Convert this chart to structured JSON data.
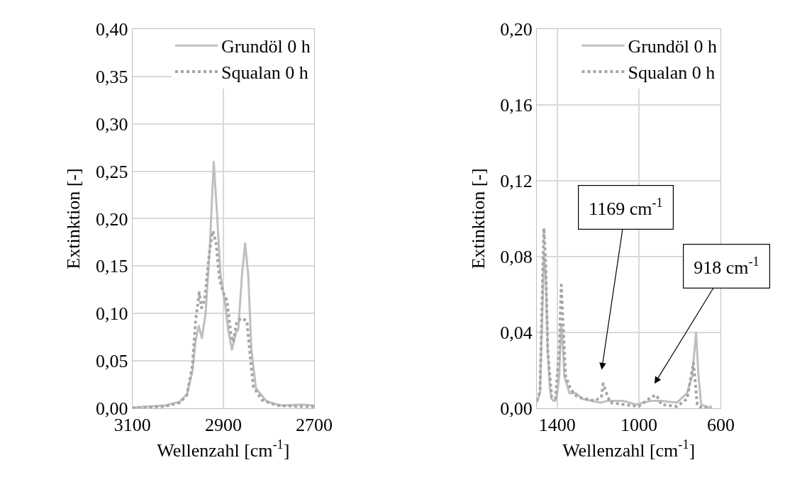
{
  "chart_data": [
    {
      "type": "line",
      "xlabel": "Wellenzahl [cm$^{-1}$]",
      "ylabel": "Extinktion [-]",
      "xlim": [
        3100,
        2700
      ],
      "xticks": [
        3100,
        2900,
        2700
      ],
      "ylim": [
        0,
        0.4
      ],
      "yticks": [
        {
          "value": 0,
          "label": "0,00"
        },
        {
          "value": 0.05,
          "label": "0,05"
        },
        {
          "value": 0.1,
          "label": "0,10"
        },
        {
          "value": 0.15,
          "label": "0,15"
        },
        {
          "value": 0.2,
          "label": "0,20"
        },
        {
          "value": 0.25,
          "label": "0,25"
        },
        {
          "value": 0.3,
          "label": "0,30"
        },
        {
          "value": 0.35,
          "label": "0,35"
        },
        {
          "value": 0.4,
          "label": "0,40"
        }
      ],
      "grid": true,
      "legend": "top right",
      "marker": "none",
      "series": [
        {
          "name": "Grundöl 0 h",
          "color": "#bfbfbf",
          "line_style": "solid",
          "x": [
            3100,
            3029,
            2996,
            2980,
            2968,
            2961,
            2954,
            2947,
            2939,
            2930,
            2921,
            2914,
            2906,
            2897,
            2889,
            2881,
            2872,
            2867,
            2859,
            2852,
            2845,
            2838,
            2828,
            2804,
            2771,
            2726,
            2700
          ],
          "values": [
            0.001,
            0.003,
            0.007,
            0.015,
            0.039,
            0.071,
            0.087,
            0.074,
            0.1,
            0.167,
            0.26,
            0.207,
            0.14,
            0.114,
            0.082,
            0.062,
            0.08,
            0.083,
            0.14,
            0.174,
            0.14,
            0.061,
            0.021,
            0.007,
            0.003,
            0.004,
            0.003
          ]
        },
        {
          "name": "Squalan 0 h",
          "color": "#a6a6a6",
          "line_style": "dotted",
          "x": [
            3100,
            3029,
            2996,
            2980,
            2968,
            2961,
            2953,
            2948,
            2941,
            2930,
            2923,
            2916,
            2908,
            2900,
            2892,
            2883,
            2878,
            2870,
            2859,
            2848,
            2842,
            2834,
            2815,
            2782,
            2726,
            2700
          ],
          "values": [
            0.0,
            0.002,
            0.006,
            0.014,
            0.045,
            0.092,
            0.122,
            0.106,
            0.114,
            0.167,
            0.187,
            0.175,
            0.135,
            0.122,
            0.114,
            0.077,
            0.07,
            0.092,
            0.095,
            0.092,
            0.061,
            0.023,
            0.009,
            0.003,
            0.002,
            0.002
          ]
        }
      ]
    },
    {
      "type": "line",
      "xlabel": "Wellenzahl [cm$^{-1}$]",
      "ylabel": "Extinktion [-]",
      "xlim": [
        1500,
        600
      ],
      "xticks": [
        1400,
        1000,
        600
      ],
      "ylim": [
        0,
        0.2
      ],
      "yticks": [
        {
          "value": 0,
          "label": "0,00"
        },
        {
          "value": 0.04,
          "label": "0,04"
        },
        {
          "value": 0.08,
          "label": "0,08"
        },
        {
          "value": 0.12,
          "label": "0,12"
        },
        {
          "value": 0.16,
          "label": "0,16"
        },
        {
          "value": 0.2,
          "label": "0,20"
        }
      ],
      "grid": true,
      "legend": "top right",
      "marker": "none",
      "annotations": [
        "1169 cm$^{-1}$",
        "918 cm$^{-1}$"
      ],
      "series": [
        {
          "name": "Grundöl 0 h",
          "color": "#bfbfbf",
          "line_style": "solid",
          "x": [
            1500,
            1484,
            1471,
            1465,
            1456,
            1446,
            1436,
            1427,
            1418,
            1409,
            1400,
            1390,
            1381,
            1375,
            1365,
            1340,
            1309,
            1277,
            1190,
            1152,
            1077,
            1015,
            940,
            890,
            815,
            765,
            740,
            721,
            709,
            696,
            646
          ],
          "values": [
            0.003,
            0.008,
            0.057,
            0.082,
            0.07,
            0.03,
            0.011,
            0.005,
            0.004,
            0.004,
            0.008,
            0.017,
            0.044,
            0.04,
            0.017,
            0.008,
            0.008,
            0.005,
            0.003,
            0.004,
            0.004,
            0.002,
            0.004,
            0.004,
            0.003,
            0.008,
            0.017,
            0.04,
            0.017,
            0.002,
            0.0
          ]
        },
        {
          "name": "Squalan 0 h",
          "color": "#a6a6a6",
          "line_style": "dotted",
          "x": [
            1500,
            1484,
            1471,
            1465,
            1456,
            1446,
            1427,
            1409,
            1390,
            1380,
            1371,
            1359,
            1334,
            1302,
            1215,
            1184,
            1175,
            1159,
            1140,
            1002,
            940,
            915,
            890,
            815,
            765,
            734,
            725,
            715,
            690,
            646
          ],
          "values": [
            0.004,
            0.009,
            0.07,
            0.095,
            0.076,
            0.03,
            0.006,
            0.005,
            0.03,
            0.065,
            0.044,
            0.017,
            0.01,
            0.006,
            0.004,
            0.006,
            0.013,
            0.008,
            0.003,
            0.001,
            0.006,
            0.007,
            0.002,
            0.001,
            0.005,
            0.024,
            0.014,
            0.002,
            0.0,
            0.001
          ]
        }
      ]
    }
  ]
}
